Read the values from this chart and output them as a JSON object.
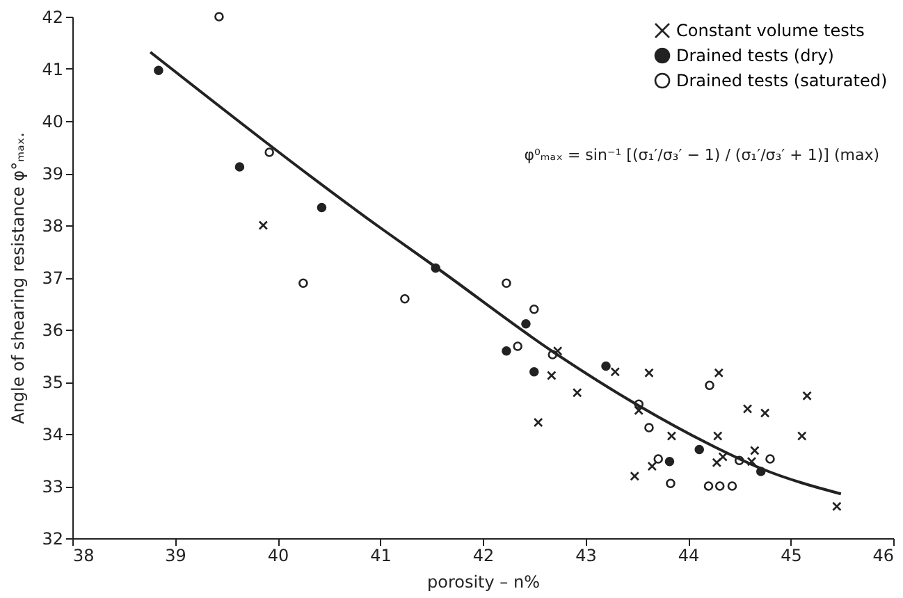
{
  "chart_data": {
    "type": "scatter",
    "xlabel": "porosity – n%",
    "ylabel": "Angle of shearing resistance φ°ₘₐₓ.",
    "xlim": [
      38,
      46
    ],
    "xticks": [
      38,
      39,
      40,
      41,
      42,
      43,
      44,
      45,
      46
    ],
    "ylim": [
      32,
      42
    ],
    "yticks": [
      32,
      33,
      34,
      35,
      36,
      37,
      38,
      39,
      40,
      41,
      42
    ],
    "grid": false,
    "legend": "top right",
    "annotations": [
      "φ⁰ₘₐₓ = sin⁻¹ [(σ₁′/σ₃′ − 1) / (σ₁′/σ₃′ + 1)] (max)"
    ],
    "series": [
      {
        "name": "Constant volume tests",
        "color": "#222222",
        "marker": "cross",
        "x": [
          39.86,
          42.73,
          42.67,
          42.54,
          42.92,
          43.29,
          43.62,
          43.52,
          43.84,
          43.48,
          43.65,
          44.3,
          44.29,
          44.28,
          44.34,
          44.65,
          44.62,
          44.58,
          44.75,
          45.16,
          45.11,
          45.45
        ],
        "values": [
          38.0,
          35.59,
          35.12,
          34.22,
          34.79,
          35.19,
          35.17,
          34.45,
          33.96,
          33.19,
          33.38,
          35.17,
          33.96,
          33.45,
          33.56,
          33.68,
          33.47,
          34.48,
          34.4,
          34.73,
          33.96,
          32.61
        ]
      },
      {
        "name": "Drained tests (dry)",
        "color": "#222222",
        "marker": "circle",
        "x": [
          38.84,
          39.63,
          40.43,
          41.54,
          42.42,
          42.23,
          42.5,
          43.2,
          43.82,
          44.11,
          44.71
        ],
        "values": [
          40.97,
          39.12,
          38.34,
          37.18,
          36.11,
          35.59,
          35.19,
          35.3,
          33.47,
          33.7,
          33.28
        ]
      },
      {
        "name": "Drained tests (saturated)",
        "color": "#ffffff",
        "marker": "circle",
        "x": [
          39.43,
          39.92,
          40.25,
          41.24,
          42.23,
          42.5,
          42.34,
          42.68,
          43.52,
          43.62,
          43.71,
          43.83,
          44.2,
          44.31,
          44.43,
          44.21,
          44.5,
          44.8
        ],
        "values": [
          42.0,
          39.4,
          36.89,
          36.59,
          36.89,
          36.39,
          35.68,
          35.52,
          34.57,
          34.12,
          33.52,
          33.05,
          33.0,
          33.0,
          33.0,
          34.93,
          33.49,
          33.52
        ]
      },
      {
        "type": "line",
        "color": "#222222",
        "marker": "none",
        "x": [
          38.76,
          41.01,
          41.54,
          42.68,
          43.52,
          44.26,
          44.72,
          45.49
        ],
        "values": [
          41.32,
          37.94,
          37.2,
          35.58,
          34.54,
          33.75,
          33.33,
          32.85
        ]
      }
    ]
  }
}
